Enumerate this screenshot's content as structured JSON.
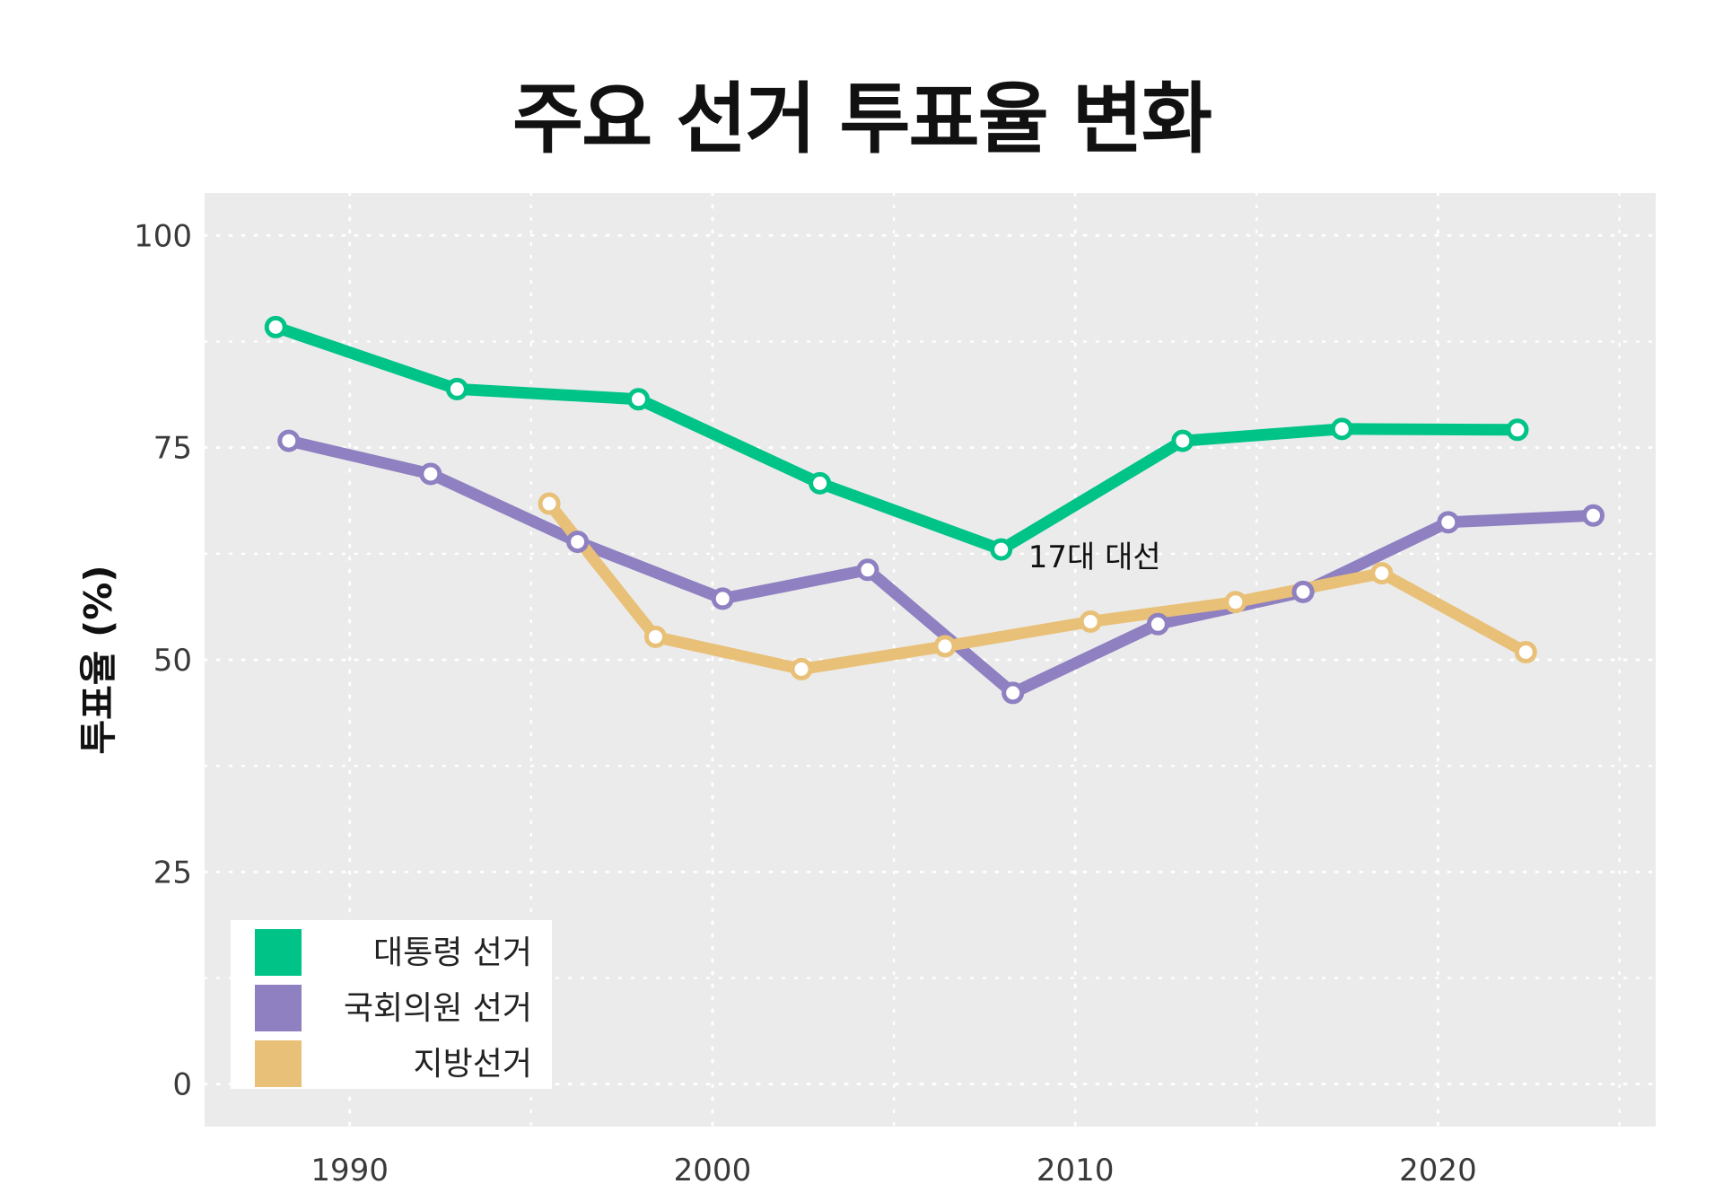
{
  "chart_data": {
    "type": "line",
    "title": "주요 선거 투표율 변화",
    "xlabel": "",
    "ylabel": "투표율 (%)",
    "xlim": [
      1986,
      2026
    ],
    "ylim": [
      -5,
      105
    ],
    "xticks": [
      1990,
      2000,
      2010,
      2020
    ],
    "yticks": [
      0,
      25,
      50,
      75,
      100
    ],
    "grid": true,
    "legend_position": "bottom-left",
    "series": [
      {
        "name": "대통령 선거",
        "color": "#00C388",
        "x": [
          1987.96,
          1992.96,
          1997.96,
          2002.96,
          2007.96,
          2012.96,
          2017.35,
          2022.19
        ],
        "y": [
          89.2,
          81.9,
          80.7,
          70.8,
          63.0,
          75.8,
          77.2,
          77.1
        ]
      },
      {
        "name": "국회의원 선거",
        "color": "#8E80C1",
        "x": [
          1988.32,
          1992.23,
          1996.28,
          2000.28,
          2004.28,
          2008.28,
          2012.28,
          2016.28,
          2020.28,
          2024.28
        ],
        "y": [
          75.8,
          71.9,
          63.9,
          57.2,
          60.6,
          46.1,
          54.2,
          58.0,
          66.2,
          67.0
        ]
      },
      {
        "name": "지방선거",
        "color": "#E8C077",
        "x": [
          1995.5,
          1998.43,
          2002.45,
          2006.41,
          2010.42,
          2014.42,
          2018.45,
          2022.42
        ],
        "y": [
          68.4,
          52.7,
          48.9,
          51.6,
          54.5,
          56.8,
          60.2,
          50.9
        ]
      }
    ],
    "annotations": [
      {
        "text": "17대 대선",
        "x": 2007.96,
        "y": 63.0
      }
    ]
  }
}
